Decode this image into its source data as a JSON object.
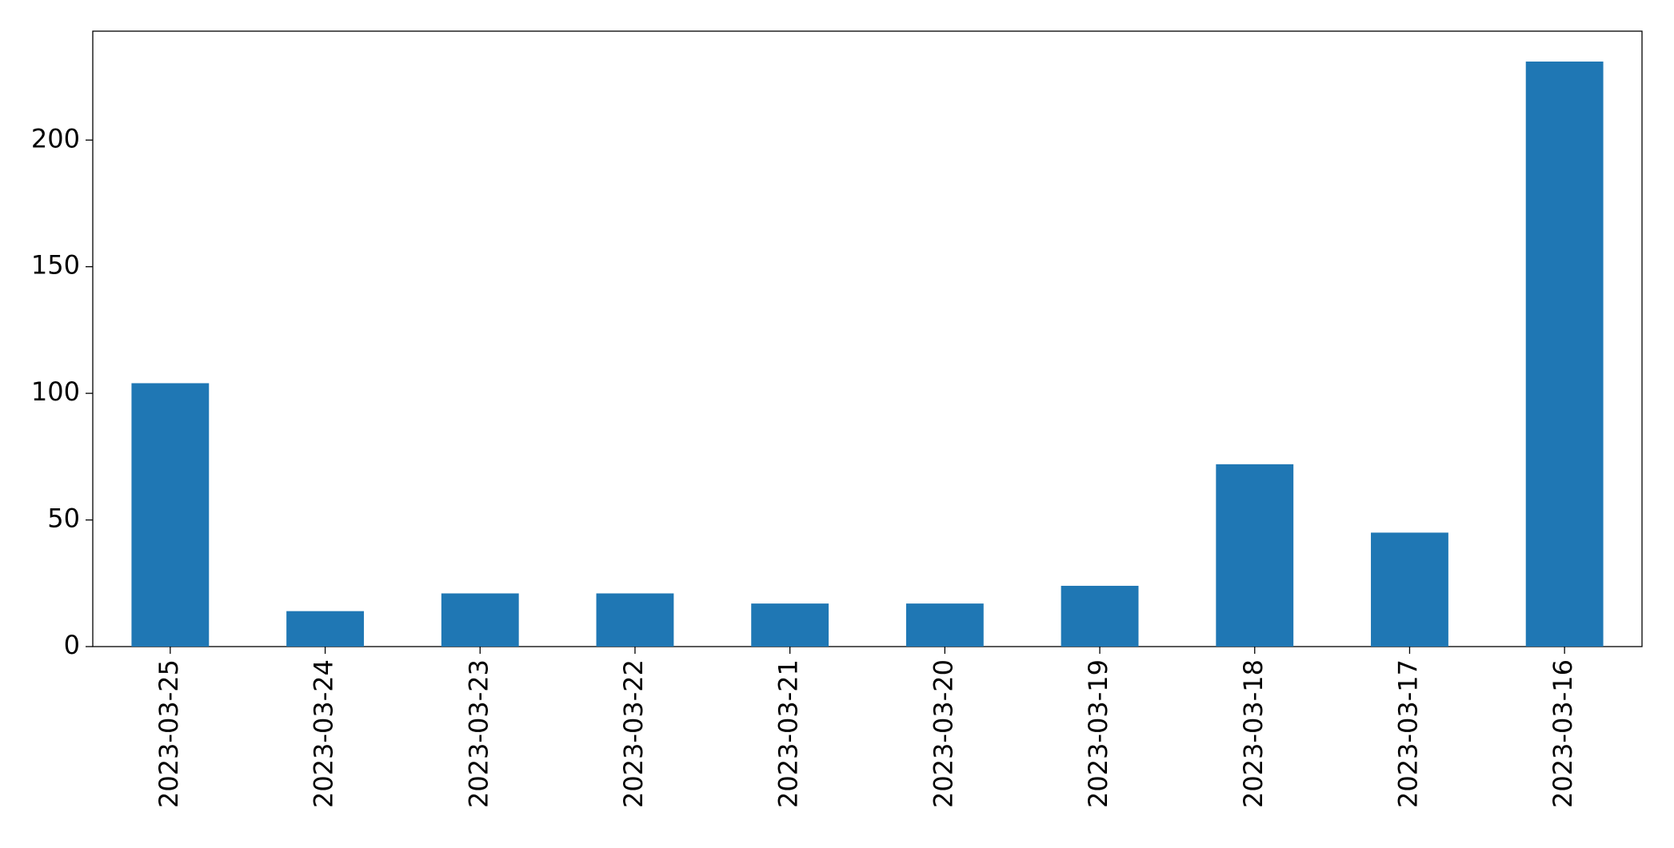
{
  "chart_data": {
    "type": "bar",
    "categories": [
      "2023-03-25",
      "2023-03-24",
      "2023-03-23",
      "2023-03-22",
      "2023-03-21",
      "2023-03-20",
      "2023-03-19",
      "2023-03-18",
      "2023-03-17",
      "2023-03-16"
    ],
    "values": [
      104,
      14,
      21,
      21,
      17,
      17,
      24,
      72,
      45,
      231
    ],
    "color": "#1f77b4",
    "ylim": [
      0,
      243
    ],
    "yticks": [
      0,
      50,
      100,
      150,
      200
    ],
    "grid": false
  }
}
